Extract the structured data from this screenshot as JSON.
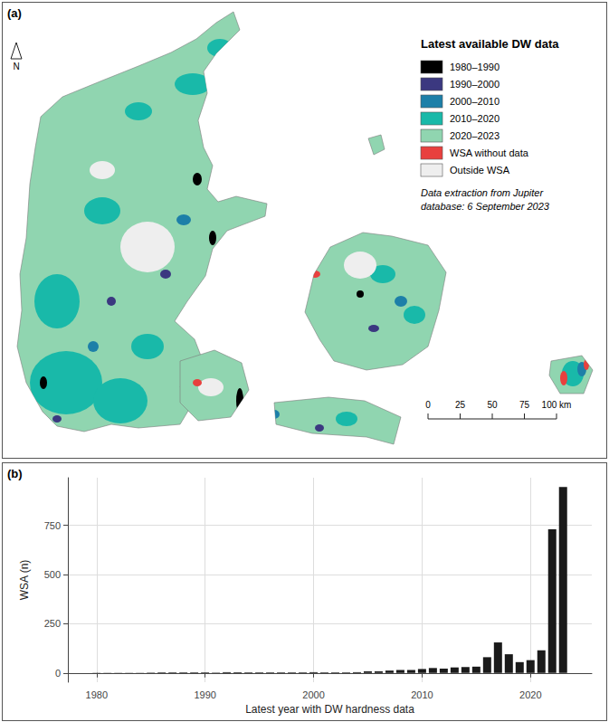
{
  "map": {
    "panel_label": "(a)",
    "north": "N",
    "legend": {
      "title": "Latest available DW data",
      "items": [
        {
          "label": "1980–1990",
          "color": "#000000"
        },
        {
          "label": "1990–2000",
          "color": "#3b3880"
        },
        {
          "label": "2000–2010",
          "color": "#1d7fa8"
        },
        {
          "label": "2010–2020",
          "color": "#19b9a9"
        },
        {
          "label": "2020–2023",
          "color": "#90d5b0"
        },
        {
          "label": "WSA without data",
          "color": "#e8403e"
        },
        {
          "label": "Outside WSA",
          "color": "#eeeeee"
        }
      ]
    },
    "note": [
      "Data extraction from Jupiter",
      "database: 6 September 2023"
    ],
    "scale_bar": {
      "ticks": [
        0,
        25,
        50,
        75,
        {
          "value": 100,
          "label": "100 km"
        }
      ]
    }
  },
  "chart_data": {
    "type": "bar",
    "panel_label": "(b)",
    "x": [
      1980,
      1981,
      1982,
      1983,
      1984,
      1985,
      1986,
      1987,
      1988,
      1989,
      1990,
      1991,
      1992,
      1993,
      1994,
      1995,
      1996,
      1997,
      1998,
      1999,
      2000,
      2001,
      2002,
      2003,
      2004,
      2005,
      2006,
      2007,
      2008,
      2009,
      2010,
      2011,
      2012,
      2013,
      2014,
      2015,
      2016,
      2017,
      2018,
      2019,
      2020,
      2021,
      2022,
      2023
    ],
    "values": [
      1,
      1,
      1,
      1,
      1,
      2,
      3,
      3,
      3,
      3,
      3,
      2,
      4,
      3,
      3,
      3,
      3,
      3,
      3,
      3,
      4,
      3,
      3,
      3,
      4,
      8,
      8,
      12,
      15,
      15,
      20,
      25,
      22,
      28,
      30,
      32,
      80,
      155,
      95,
      55,
      65,
      115,
      730,
      945
    ],
    "color": "#1a1a1a",
    "xlabel": "Latest year with DW hardness data",
    "ylabel": "WSA (n)",
    "xlim": [
      1977.35,
      2025.65
    ],
    "xticks": [
      1980,
      1990,
      2000,
      2010,
      2020
    ],
    "ylim": [
      -47,
      992
    ],
    "yticks": [
      0,
      250,
      500,
      750
    ],
    "grid": true
  }
}
